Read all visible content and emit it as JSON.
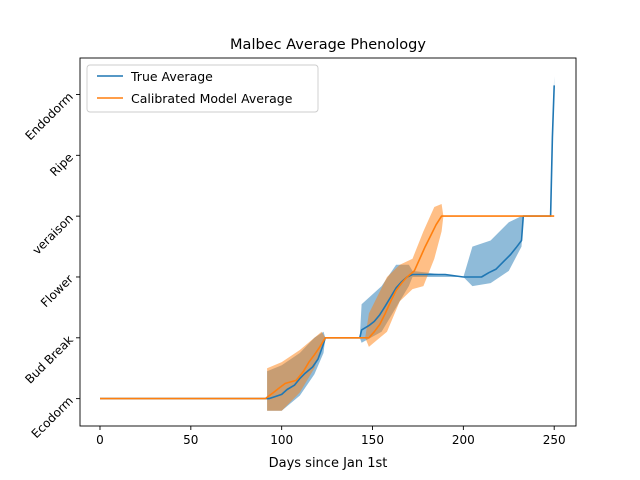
{
  "chart_data": {
    "type": "line",
    "title": "Malbec Average Phenology",
    "xlabel": "Days since Jan 1st",
    "ylabel": "",
    "xlim": [
      -11,
      262
    ],
    "ylim": [
      -0.45,
      5.6
    ],
    "x_ticks": [
      0,
      50,
      100,
      150,
      200,
      250
    ],
    "y_ticks": [
      0,
      1,
      2,
      3,
      4,
      5
    ],
    "y_tick_labels": [
      "Ecodorm",
      "Bud Break",
      "Flower",
      "veraison",
      "Ripe",
      "Endodorm"
    ],
    "grid": false,
    "legend_position": "top-left",
    "series": [
      {
        "name": "True Average",
        "color": "#1f77b4",
        "points": [
          [
            0,
            0
          ],
          [
            93,
            0
          ],
          [
            97,
            0.04
          ],
          [
            100,
            0.07
          ],
          [
            103,
            0.15
          ],
          [
            107,
            0.22
          ],
          [
            110,
            0.33
          ],
          [
            113,
            0.42
          ],
          [
            117,
            0.52
          ],
          [
            120,
            0.65
          ],
          [
            123,
            0.9
          ],
          [
            124,
            1.0
          ],
          [
            143,
            1.0
          ],
          [
            144,
            1.13
          ],
          [
            148,
            1.2
          ],
          [
            151,
            1.27
          ],
          [
            154,
            1.38
          ],
          [
            157,
            1.52
          ],
          [
            160,
            1.67
          ],
          [
            163,
            1.82
          ],
          [
            166,
            1.92
          ],
          [
            169,
            2.0
          ],
          [
            172,
            2.04
          ],
          [
            190,
            2.04
          ],
          [
            200,
            2.0
          ],
          [
            210,
            2.0
          ],
          [
            214,
            2.07
          ],
          [
            218,
            2.13
          ],
          [
            222,
            2.25
          ],
          [
            226,
            2.37
          ],
          [
            229,
            2.48
          ],
          [
            232,
            2.6
          ],
          [
            233,
            3.0
          ],
          [
            248,
            3.0
          ],
          [
            249,
            4.3
          ],
          [
            250,
            5.15
          ]
        ],
        "band": [
          [
            92,
            -0.2,
            0.45
          ],
          [
            100,
            -0.2,
            0.55
          ],
          [
            110,
            0.05,
            0.75
          ],
          [
            118,
            0.4,
            1.0
          ],
          [
            123,
            0.75,
            1.1
          ],
          [
            124,
            1.0,
            1.0
          ],
          [
            143,
            1.0,
            1.0
          ],
          [
            144,
            0.92,
            1.55
          ],
          [
            155,
            1.1,
            1.85
          ],
          [
            163,
            1.5,
            2.2
          ],
          [
            170,
            1.85,
            2.2
          ],
          [
            172,
            2.0,
            2.1
          ],
          [
            200,
            2.0,
            2.0
          ],
          [
            205,
            1.85,
            2.5
          ],
          [
            215,
            1.9,
            2.6
          ],
          [
            225,
            2.1,
            2.9
          ],
          [
            232,
            2.5,
            3.0
          ],
          [
            233,
            3.0,
            3.0
          ],
          [
            248,
            3.0,
            3.0
          ],
          [
            249,
            4.2,
            4.45
          ],
          [
            250,
            5.0,
            5.3
          ]
        ]
      },
      {
        "name": "Calibrated Model Average",
        "color": "#ff7f0e",
        "points": [
          [
            0,
            0
          ],
          [
            91,
            0
          ],
          [
            95,
            0.09
          ],
          [
            98,
            0.16
          ],
          [
            102,
            0.25
          ],
          [
            108,
            0.3
          ],
          [
            112,
            0.45
          ],
          [
            115,
            0.6
          ],
          [
            118,
            0.72
          ],
          [
            121,
            0.85
          ],
          [
            124,
            1.0
          ],
          [
            148,
            1.0
          ],
          [
            151,
            1.1
          ],
          [
            154,
            1.22
          ],
          [
            157,
            1.4
          ],
          [
            160,
            1.6
          ],
          [
            163,
            1.78
          ],
          [
            166,
            1.9
          ],
          [
            169,
            2.0
          ],
          [
            173,
            2.1
          ],
          [
            176,
            2.3
          ],
          [
            179,
            2.5
          ],
          [
            182,
            2.68
          ],
          [
            185,
            2.86
          ],
          [
            188,
            3.0
          ],
          [
            250,
            3.0
          ]
        ],
        "band": [
          [
            92,
            -0.2,
            0.5
          ],
          [
            100,
            -0.2,
            0.6
          ],
          [
            110,
            0.1,
            0.8
          ],
          [
            118,
            0.5,
            1.0
          ],
          [
            122,
            0.85,
            1.1
          ],
          [
            124,
            1.0,
            1.0
          ],
          [
            146,
            1.0,
            1.0
          ],
          [
            148,
            0.85,
            1.4
          ],
          [
            158,
            1.1,
            2.0
          ],
          [
            165,
            1.6,
            2.2
          ],
          [
            172,
            1.8,
            2.3
          ],
          [
            178,
            1.85,
            2.75
          ],
          [
            184,
            2.3,
            3.15
          ],
          [
            188,
            2.75,
            3.2
          ],
          [
            189,
            3.0,
            3.0
          ],
          [
            250,
            3.0,
            3.0
          ]
        ]
      }
    ]
  }
}
